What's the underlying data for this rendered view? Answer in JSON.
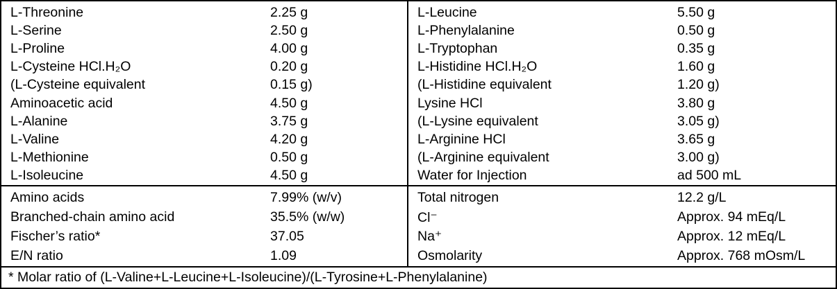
{
  "colors": {
    "background": "#ffffff",
    "border": "#000000",
    "text": "#000000"
  },
  "table": {
    "composition": {
      "left": [
        {
          "label": "L-Threonine",
          "value": "2.25 g"
        },
        {
          "label": "L-Serine",
          "value": "2.50 g"
        },
        {
          "label": "L-Proline",
          "value": "4.00 g"
        },
        {
          "label": "L-Cysteine HCl.H₂O",
          "value": "0.20 g"
        },
        {
          "label": "(L-Cysteine equivalent",
          "value": "0.15 g)"
        },
        {
          "label": "Aminoacetic acid",
          "value": "4.50 g"
        },
        {
          "label": "L-Alanine",
          "value": "3.75 g"
        },
        {
          "label": "L-Valine",
          "value": "4.20 g"
        },
        {
          "label": "L-Methionine",
          "value": "0.50 g"
        },
        {
          "label": "L-Isoleucine",
          "value": "4.50 g"
        }
      ],
      "right": [
        {
          "label": "L-Leucine",
          "value": "5.50 g"
        },
        {
          "label": "L-Phenylalanine",
          "value": "0.50 g"
        },
        {
          "label": "L-Tryptophan",
          "value": "0.35 g"
        },
        {
          "label": "L-Histidine HCl.H₂O",
          "value": "1.60 g"
        },
        {
          "label": "(L-Histidine equivalent",
          "value": "1.20 g)"
        },
        {
          "label": "Lysine HCl",
          "value": "3.80 g"
        },
        {
          "label": "(L-Lysine equivalent",
          "value": "3.05 g)"
        },
        {
          "label": "L-Arginine HCl",
          "value": "3.65 g"
        },
        {
          "label": "(L-Arginine equivalent",
          "value": "3.00 g)"
        },
        {
          "label": "Water for Injection",
          "value": "ad 500 mL"
        }
      ]
    },
    "properties": {
      "left": [
        {
          "label": "Amino acids",
          "value": "7.99% (w/v)"
        },
        {
          "label": "Branched-chain amino acid",
          "value": "35.5% (w/w)"
        },
        {
          "label": "Fischer’s ratio*",
          "value": "37.05"
        },
        {
          "label": "E/N ratio",
          "value": "1.09"
        }
      ],
      "right": [
        {
          "label": "Total nitrogen",
          "value": "12.2 g/L"
        },
        {
          "label": "Cl⁻",
          "value": "Approx. 94 mEq/L"
        },
        {
          "label": "Na⁺",
          "value": "Approx. 12 mEq/L"
        },
        {
          "label": "Osmolarity",
          "value": "Approx. 768 mOsm/L"
        }
      ]
    },
    "footnote": "* Molar ratio of (L-Valine+L-Leucine+L-Isoleucine)/(L-Tyrosine+L-Phenylalanine)"
  }
}
